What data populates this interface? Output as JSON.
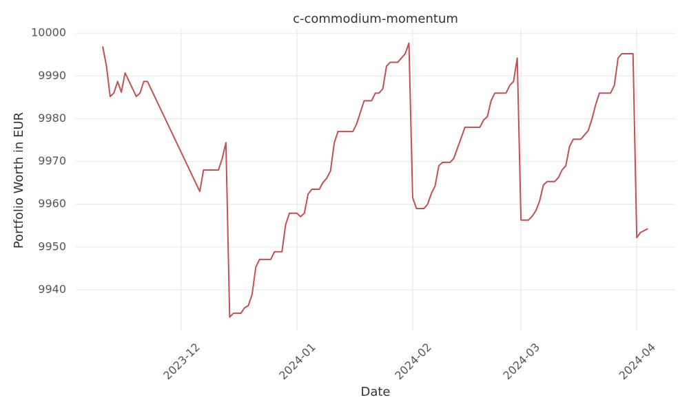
{
  "chart_data": {
    "type": "line",
    "title": "c-commodium-momentum",
    "x_label": "Date",
    "y_label": "Portfolio Worth in EUR",
    "color": "#c44e52",
    "grid": true,
    "x": [
      0,
      1,
      2,
      3,
      4,
      5,
      6,
      9,
      10,
      11,
      12,
      26,
      27,
      31,
      32,
      33,
      34,
      35,
      37,
      38,
      39,
      40,
      41,
      42,
      45,
      46,
      48,
      49,
      50,
      52,
      53,
      54,
      55,
      56,
      58,
      59,
      60,
      61,
      62,
      63,
      67,
      68,
      70,
      72,
      73,
      74,
      75,
      76,
      77,
      79,
      81,
      82,
      83,
      84,
      86,
      87,
      88,
      89,
      90,
      91,
      93,
      94,
      97,
      101,
      102,
      103,
      104,
      105,
      108,
      109,
      110,
      111,
      112,
      114,
      115,
      116,
      117,
      118,
      119,
      121,
      122,
      123,
      124,
      125,
      126,
      128,
      130,
      131,
      132,
      133,
      136,
      137,
      138,
      139,
      142,
      143,
      144,
      146
    ],
    "values": [
      9996.9,
      9992.4,
      9985.2,
      9986.0,
      9988.7,
      9986.2,
      9990.7,
      9985.2,
      9986.0,
      9988.7,
      9988.7,
      9963.0,
      9968.0,
      9968.0,
      9970.7,
      9974.4,
      9933.6,
      9934.5,
      9934.5,
      9935.8,
      9936.3,
      9938.9,
      9945.3,
      9947.1,
      9947.1,
      9948.9,
      9948.9,
      9955.3,
      9957.9,
      9957.9,
      9957.1,
      9957.9,
      9962.4,
      9963.5,
      9963.5,
      9965.1,
      9966.1,
      9967.8,
      9974.3,
      9977.0,
      9977.0,
      9978.8,
      9984.2,
      9984.2,
      9986.0,
      9986.0,
      9987.0,
      9992.3,
      9993.2,
      9993.2,
      9995.2,
      9997.7,
      9961.6,
      9959.0,
      9959.0,
      9960.0,
      9962.5,
      9964.3,
      9969.0,
      9969.8,
      9969.8,
      9970.7,
      9978.0,
      9978.0,
      9979.7,
      9980.5,
      9984.2,
      9986.0,
      9986.0,
      9987.8,
      9988.7,
      9994.2,
      9956.3,
      9956.3,
      9957.2,
      9958.5,
      9960.8,
      9964.5,
      9965.3,
      9965.3,
      9966.2,
      9968.0,
      9969.0,
      9973.5,
      9975.2,
      9975.2,
      9977.2,
      9979.9,
      9983.3,
      9986.0,
      9986.0,
      9987.8,
      9994.2,
      9995.2,
      9995.2,
      9952.2,
      9953.4,
      9954.3
    ],
    "xlim": [
      -7.2,
      153.3
    ],
    "xticks": [
      {
        "value": 21,
        "label": "2023-12"
      },
      {
        "value": 52,
        "label": "2024-01"
      },
      {
        "value": 83,
        "label": "2024-02"
      },
      {
        "value": 112,
        "label": "2024-03"
      },
      {
        "value": 143,
        "label": "2024-04"
      }
    ],
    "ylim": [
      9930.5,
      10001
    ],
    "yticks": [
      9940,
      9950,
      9960,
      9970,
      9980,
      9990,
      10000
    ]
  }
}
